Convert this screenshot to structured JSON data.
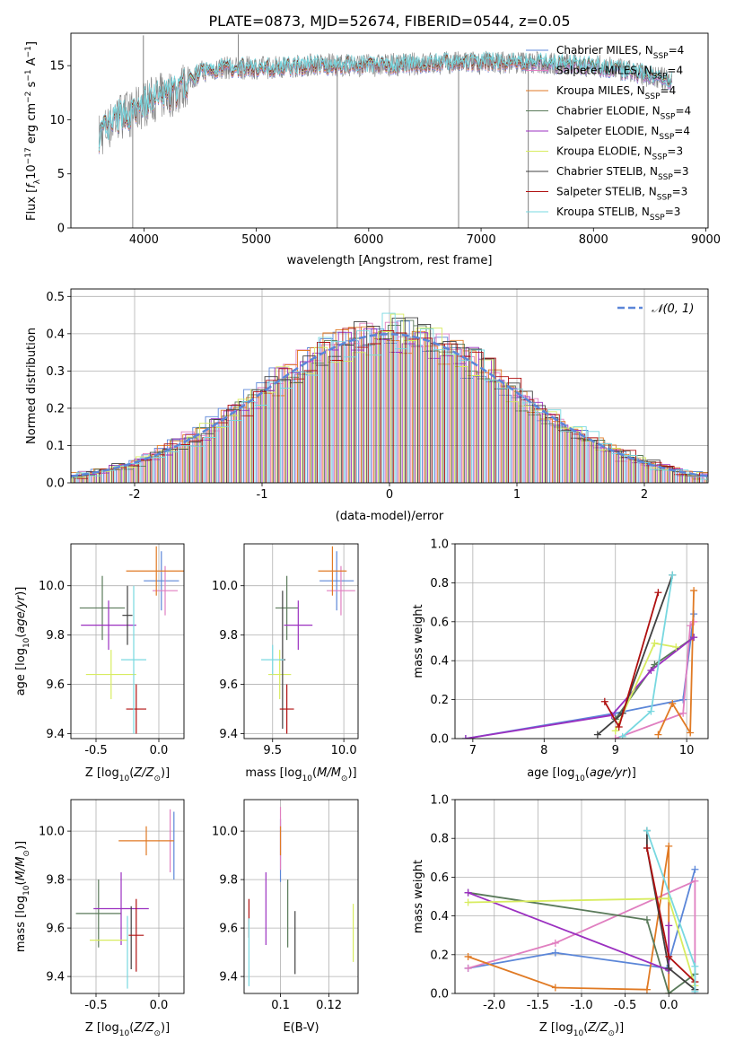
{
  "figure_title": "PLATE=0873, MJD=52674, FIBERID=0544, z=0.05",
  "colors": {
    "Chabrier MILES": "#5b86d8",
    "Salpeter MILES": "#e07fc0",
    "Kroupa MILES": "#e07a24",
    "Chabrier ELODIE": "#5a7a5a",
    "Salpeter ELODIE": "#9b30c0",
    "Kroupa ELODIE": "#d8ec60",
    "Chabrier STELIB": "#404040",
    "Salpeter STELIB": "#b01010",
    "Kroupa STELIB": "#78d8e0",
    "data_gray": "#808080",
    "normal_curve": "#5b86d8"
  },
  "chart_data": [
    {
      "id": "spectrum",
      "type": "line",
      "xlabel": "wavelength [Angstrom, rest frame]",
      "ylabel": "Flux [f_λ10^-17 erg cm^-2 s^-1 A^-1]",
      "xlim": [
        3350,
        9020
      ],
      "ylim": [
        0,
        18
      ],
      "xticks": [
        4000,
        5000,
        6000,
        7000,
        8000,
        9000
      ],
      "yticks": [
        0,
        5,
        10,
        15
      ],
      "grid": false,
      "legend": "right",
      "legend_entries": [
        "Chabrier MILES, N_SSP=4",
        "Salpeter MILES, N_SSP=4",
        "Kroupa MILES, N_SSP=4",
        "Chabrier ELODIE, N_SSP=4",
        "Salpeter ELODIE, N_SSP=4",
        "Kroupa ELODIE, N_SSP=3",
        "Chabrier STELIB, N_SSP=3",
        "Salpeter STELIB, N_SSP=3",
        "Kroupa STELIB, N_SSP=3"
      ],
      "continuum": {
        "x": [
          3600,
          3700,
          3800,
          3900,
          4000,
          4100,
          4200,
          4300,
          4400,
          4500,
          4700,
          5000,
          5300,
          5500,
          6000,
          6500,
          7000,
          7400,
          7600,
          8000,
          8400,
          8700
        ],
        "y": [
          8.5,
          9.5,
          10.5,
          10.5,
          11.5,
          12.0,
          12.3,
          12.6,
          13.6,
          14.4,
          14.8,
          14.8,
          14.9,
          15.1,
          15.0,
          15.2,
          15.3,
          15.3,
          15.2,
          15.0,
          14.3,
          13.6
        ]
      },
      "spikes": [
        {
          "x": 3900,
          "y": 0
        },
        {
          "x": 3995,
          "y": 17.8
        },
        {
          "x": 4840,
          "y": 17.9
        },
        {
          "x": 5720,
          "y": 0
        },
        {
          "x": 6800,
          "y": 0
        },
        {
          "x": 7420,
          "y": 0
        }
      ]
    },
    {
      "id": "residuals",
      "type": "histogram",
      "xlabel": "(data-model)/error",
      "ylabel": "Normed distribution",
      "xlim": [
        -2.5,
        2.5
      ],
      "ylim": [
        0,
        0.52
      ],
      "xticks": [
        -2,
        -1,
        0,
        1,
        2
      ],
      "yticks": [
        0,
        0.1,
        0.2,
        0.3,
        0.4,
        0.5
      ],
      "grid": true,
      "legend_label": "N(0,1)",
      "bin_width": 0.1
    },
    {
      "id": "age_vs_Z",
      "type": "errorbar",
      "xlabel": "Z [log10(Z/Z_sun)]",
      "ylabel": "age  [log10(age/yr)]",
      "xlim": [
        -0.7,
        0.2
      ],
      "ylim": [
        9.38,
        10.17
      ],
      "xticks": [
        -0.5,
        0.0
      ],
      "yticks": [
        9.4,
        9.6,
        9.8,
        10.0
      ],
      "points": [
        {
          "model": "Chabrier MILES",
          "x": 0.02,
          "y": 10.02,
          "xerr": 0.14,
          "yerr": 0.12
        },
        {
          "model": "Salpeter MILES",
          "x": 0.05,
          "y": 9.98,
          "xerr": 0.1,
          "yerr": 0.1
        },
        {
          "model": "Kroupa MILES",
          "x": -0.02,
          "y": 10.06,
          "xerr": 0.24,
          "yerr": 0.1
        },
        {
          "model": "Chabrier ELODIE",
          "x": -0.45,
          "y": 9.91,
          "xerr": 0.18,
          "yerr": 0.13
        },
        {
          "model": "Salpeter ELODIE",
          "x": -0.4,
          "y": 9.84,
          "xerr": 0.22,
          "yerr": 0.1
        },
        {
          "model": "Kroupa ELODIE",
          "x": -0.38,
          "y": 9.64,
          "xerr": 0.2,
          "yerr": 0.1
        },
        {
          "model": "Chabrier STELIB",
          "x": -0.25,
          "y": 9.88,
          "xerr": 0.04,
          "yerr": 0.12
        },
        {
          "model": "Salpeter STELIB",
          "x": -0.18,
          "y": 9.5,
          "xerr": 0.08,
          "yerr": 0.1
        },
        {
          "model": "Kroupa STELIB",
          "x": -0.2,
          "y": 9.7,
          "xerr": 0.1,
          "yerr": 0.3
        }
      ]
    },
    {
      "id": "age_vs_mass",
      "type": "errorbar",
      "xlabel": "mass [log10(M/M_sun)]",
      "ylabel": "",
      "xlim": [
        9.3,
        10.1
      ],
      "ylim": [
        9.38,
        10.17
      ],
      "xticks": [
        9.5,
        10.0
      ],
      "yticks": [
        9.4,
        9.6,
        9.8,
        10.0
      ],
      "points": [
        {
          "model": "Chabrier MILES",
          "x": 9.95,
          "y": 10.02,
          "xerr": 0.12,
          "yerr": 0.12
        },
        {
          "model": "Salpeter MILES",
          "x": 9.98,
          "y": 9.98,
          "xerr": 0.1,
          "yerr": 0.1
        },
        {
          "model": "Kroupa MILES",
          "x": 9.92,
          "y": 10.06,
          "xerr": 0.1,
          "yerr": 0.1
        },
        {
          "model": "Chabrier ELODIE",
          "x": 9.6,
          "y": 9.91,
          "xerr": 0.08,
          "yerr": 0.13
        },
        {
          "model": "Salpeter ELODIE",
          "x": 9.68,
          "y": 9.84,
          "xerr": 0.1,
          "yerr": 0.1
        },
        {
          "model": "Kroupa ELODIE",
          "x": 9.55,
          "y": 9.64,
          "xerr": 0.08,
          "yerr": 0.1
        },
        {
          "model": "Chabrier STELIB",
          "x": 9.57,
          "y": 9.7,
          "xerr": 0.02,
          "yerr": 0.28
        },
        {
          "model": "Salpeter STELIB",
          "x": 9.6,
          "y": 9.5,
          "xerr": 0.05,
          "yerr": 0.1
        },
        {
          "model": "Kroupa STELIB",
          "x": 9.5,
          "y": 9.7,
          "xerr": 0.08,
          "yerr": 0.06
        }
      ]
    },
    {
      "id": "massweight_vs_age",
      "type": "line",
      "xlabel": "age  [log10(age/yr)]",
      "ylabel": "mass weight",
      "xlim": [
        6.75,
        10.3
      ],
      "ylim": [
        0,
        1.0
      ],
      "xticks": [
        7,
        8,
        9,
        10
      ],
      "yticks": [
        0.0,
        0.2,
        0.4,
        0.6,
        0.8,
        1.0
      ],
      "series": [
        {
          "model": "Chabrier MILES",
          "x": [
            6.9,
            9.0,
            9.95,
            10.1
          ],
          "y": [
            0.0,
            0.13,
            0.2,
            0.64
          ]
        },
        {
          "model": "Salpeter MILES",
          "x": [
            9.0,
            9.95,
            10.05,
            10.1
          ],
          "y": [
            0.0,
            0.13,
            0.58,
            0.6
          ]
        },
        {
          "model": "Kroupa MILES",
          "x": [
            9.6,
            9.8,
            10.05,
            10.1
          ],
          "y": [
            0.02,
            0.18,
            0.03,
            0.76
          ]
        },
        {
          "model": "Chabrier ELODIE",
          "x": [
            9.0,
            9.55,
            10.1
          ],
          "y": [
            0.1,
            0.38,
            0.52
          ]
        },
        {
          "model": "Salpeter ELODIE",
          "x": [
            6.9,
            8.95,
            9.5,
            10.1
          ],
          "y": [
            0.0,
            0.12,
            0.35,
            0.52
          ]
        },
        {
          "model": "Kroupa ELODIE",
          "x": [
            9.0,
            9.55,
            9.85
          ],
          "y": [
            0.04,
            0.49,
            0.47
          ]
        },
        {
          "model": "Chabrier STELIB",
          "x": [
            8.75,
            9.1,
            9.8
          ],
          "y": [
            0.02,
            0.13,
            0.84
          ]
        },
        {
          "model": "Salpeter STELIB",
          "x": [
            8.85,
            9.05,
            9.6
          ],
          "y": [
            0.19,
            0.06,
            0.75
          ]
        },
        {
          "model": "Kroupa STELIB",
          "x": [
            9.1,
            9.5,
            9.8
          ],
          "y": [
            0.01,
            0.14,
            0.84
          ]
        }
      ]
    },
    {
      "id": "mass_vs_Z",
      "type": "errorbar",
      "xlabel": "Z [log10(Z/Z_sun)]",
      "ylabel": "mass [log10(M/M_sun)]",
      "xlim": [
        -0.7,
        0.2
      ],
      "ylim": [
        9.33,
        10.13
      ],
      "xticks": [
        -0.5,
        0.0
      ],
      "yticks": [
        9.4,
        9.6,
        9.8,
        10.0
      ],
      "points": [
        {
          "model": "Chabrier MILES",
          "x": 0.12,
          "y": 9.94,
          "xerr": 0.0,
          "yerr": 0.14
        },
        {
          "model": "Salpeter MILES",
          "x": 0.09,
          "y": 9.96,
          "xerr": 0.0,
          "yerr": 0.13
        },
        {
          "model": "Kroupa MILES",
          "x": -0.1,
          "y": 9.96,
          "xerr": 0.22,
          "yerr": 0.06
        },
        {
          "model": "Chabrier ELODIE",
          "x": -0.48,
          "y": 9.66,
          "xerr": 0.18,
          "yerr": 0.14
        },
        {
          "model": "Salpeter ELODIE",
          "x": -0.3,
          "y": 9.68,
          "xerr": 0.22,
          "yerr": 0.15
        },
        {
          "model": "Kroupa ELODIE",
          "x": -0.4,
          "y": 9.55,
          "xerr": 0.15,
          "yerr": 0.0
        },
        {
          "model": "Chabrier STELIB",
          "x": -0.22,
          "y": 9.56,
          "xerr": 0.0,
          "yerr": 0.13
        },
        {
          "model": "Salpeter STELIB",
          "x": -0.18,
          "y": 9.57,
          "xerr": 0.06,
          "yerr": 0.15
        },
        {
          "model": "Kroupa STELIB",
          "x": -0.25,
          "y": 9.5,
          "xerr": 0.0,
          "yerr": 0.15
        }
      ]
    },
    {
      "id": "mass_vs_ebv",
      "type": "errorbar",
      "xlabel": "E(B-V)",
      "ylabel": "",
      "xlim": [
        0.085,
        0.132
      ],
      "ylim": [
        9.33,
        10.13
      ],
      "xticks": [
        0.1,
        0.12
      ],
      "yticks": [
        9.4,
        9.6,
        9.8,
        10.0
      ],
      "points": [
        {
          "model": "Chabrier MILES",
          "x": 0.1,
          "y": 9.92,
          "xerr": 0,
          "yerr": 0.13
        },
        {
          "model": "Salpeter MILES",
          "x": 0.1,
          "y": 9.97,
          "xerr": 0,
          "yerr": 0.13
        },
        {
          "model": "Kroupa MILES",
          "x": 0.1,
          "y": 9.96,
          "xerr": 0,
          "yerr": 0.06
        },
        {
          "model": "Chabrier ELODIE",
          "x": 0.103,
          "y": 9.66,
          "xerr": 0,
          "yerr": 0.14
        },
        {
          "model": "Salpeter ELODIE",
          "x": 0.094,
          "y": 9.68,
          "xerr": 0,
          "yerr": 0.15
        },
        {
          "model": "Kroupa ELODIE",
          "x": 0.13,
          "y": 9.58,
          "xerr": 0,
          "yerr": 0.12
        },
        {
          "model": "Chabrier STELIB",
          "x": 0.106,
          "y": 9.54,
          "xerr": 0,
          "yerr": 0.13
        },
        {
          "model": "Salpeter STELIB",
          "x": 0.087,
          "y": 9.64,
          "xerr": 0,
          "yerr": 0.08
        },
        {
          "model": "Kroupa STELIB",
          "x": 0.087,
          "y": 9.5,
          "xerr": 0,
          "yerr": 0.14
        }
      ]
    },
    {
      "id": "massweight_vs_Z",
      "type": "line",
      "xlabel": "Z [log10(Z/Z_sun)]",
      "ylabel": "mass weight",
      "xlim": [
        -2.45,
        0.45
      ],
      "ylim": [
        0,
        1.0
      ],
      "xticks": [
        -2.0,
        -1.5,
        -1.0,
        -0.5,
        0.0
      ],
      "yticks": [
        0.0,
        0.2,
        0.4,
        0.6,
        0.8,
        1.0
      ],
      "series": [
        {
          "model": "Chabrier MILES",
          "x": [
            -2.3,
            -1.3,
            -0.02,
            0.3
          ],
          "y": [
            0.13,
            0.21,
            0.13,
            0.64
          ]
        },
        {
          "model": "Salpeter MILES",
          "x": [
            -2.3,
            -1.3,
            0.3,
            0.3
          ],
          "y": [
            0.13,
            0.26,
            0.58,
            0.0
          ]
        },
        {
          "model": "Kroupa MILES",
          "x": [
            -2.3,
            -1.3,
            -0.25,
            0.0,
            -0.0
          ],
          "y": [
            0.19,
            0.03,
            0.02,
            0.76,
            0.0
          ]
        },
        {
          "model": "Chabrier ELODIE",
          "x": [
            -2.3,
            -0.25,
            0.0,
            0.3
          ],
          "y": [
            0.52,
            0.38,
            0.0,
            0.1
          ]
        },
        {
          "model": "Salpeter ELODIE",
          "x": [
            -2.3,
            0.0,
            0.0
          ],
          "y": [
            0.52,
            0.12,
            0.35
          ]
        },
        {
          "model": "Kroupa ELODIE",
          "x": [
            -2.3,
            0.0,
            0.3
          ],
          "y": [
            0.47,
            0.49,
            0.04
          ]
        },
        {
          "model": "Chabrier STELIB",
          "x": [
            -0.25,
            -0.25,
            0.0,
            0.3
          ],
          "y": [
            0.84,
            0.75,
            0.13,
            0.02
          ]
        },
        {
          "model": "Salpeter STELIB",
          "x": [
            -0.25,
            0.0,
            0.3
          ],
          "y": [
            0.75,
            0.19,
            0.06
          ]
        },
        {
          "model": "Kroupa STELIB",
          "x": [
            -0.25,
            0.3,
            0.3
          ],
          "y": [
            0.84,
            0.14,
            0.01
          ]
        }
      ]
    }
  ]
}
